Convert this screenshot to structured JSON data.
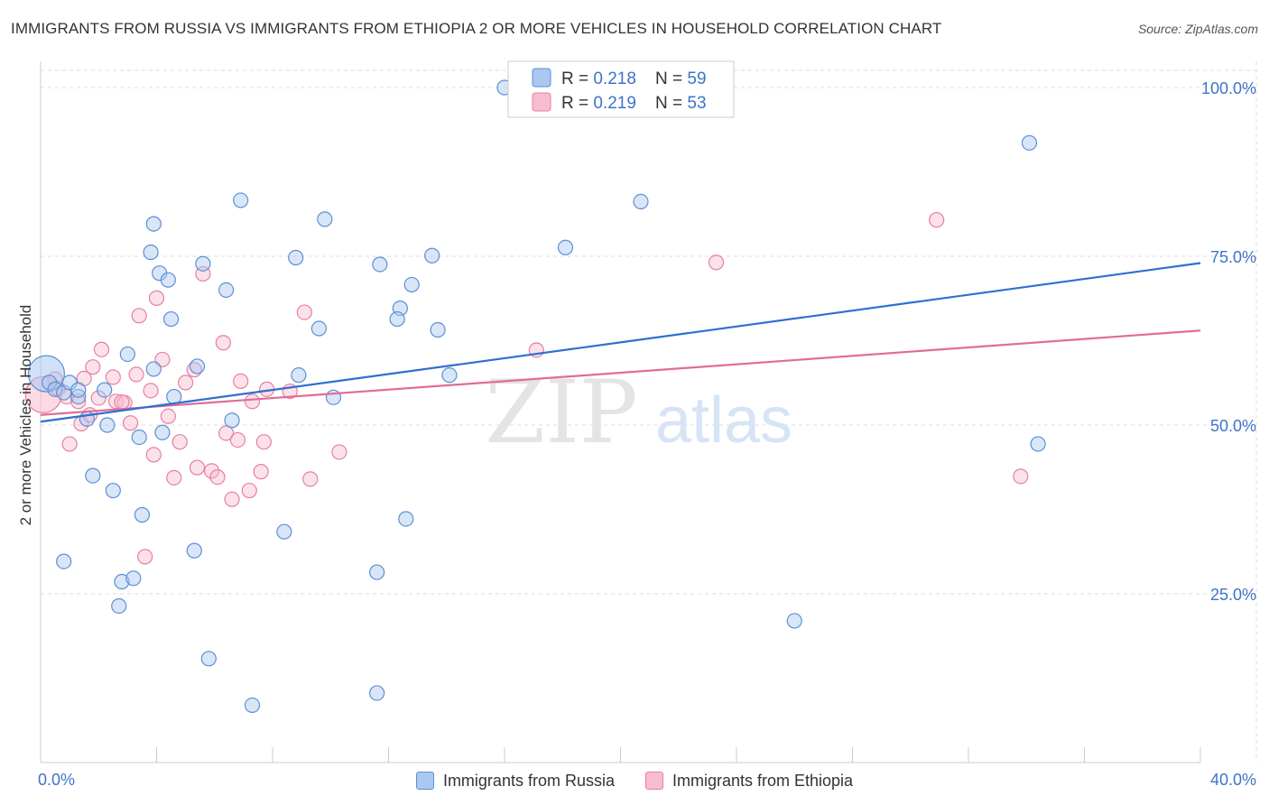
{
  "title": "IMMIGRANTS FROM RUSSIA VS IMMIGRANTS FROM ETHIOPIA 2 OR MORE VEHICLES IN HOUSEHOLD CORRELATION CHART",
  "source": "Source: ZipAtlas.com",
  "watermark": {
    "zip": "ZIP",
    "atlas": "atlas"
  },
  "stats": [
    {
      "r_label": "R = ",
      "r_value": "0.218",
      "n_label": "N = ",
      "n_value": "59"
    },
    {
      "r_label": "R = ",
      "r_value": "0.219",
      "n_label": "N = ",
      "n_value": "53"
    }
  ],
  "colors": {
    "russia_fill": "#aac8f0",
    "russia_stroke": "#5b8fd6",
    "russia_line": "#2e6fd1",
    "ethiopia_fill": "#f7bcd0",
    "ethiopia_stroke": "#e87fa3",
    "ethiopia_line": "#e06c98",
    "tick_text": "#3f73c8",
    "grid": "#dddddd"
  },
  "chart_data": {
    "type": "scatter",
    "title": "IMMIGRANTS FROM RUSSIA VS IMMIGRANTS FROM ETHIOPIA 2 OR MORE VEHICLES IN HOUSEHOLD CORRELATION CHART",
    "xlabel": "",
    "ylabel": "2 or more Vehicles in Household",
    "xlim": [
      0,
      40
    ],
    "ylim": [
      0,
      102
    ],
    "x_tick_labels": [
      "0.0%",
      "40.0%"
    ],
    "y_ticks": [
      25,
      50,
      75,
      100
    ],
    "y_tick_labels": [
      "25.0%",
      "50.0%",
      "75.0%",
      "100.0%"
    ],
    "legend": [
      "Immigrants from Russia",
      "Immigrants from Ethiopia"
    ],
    "series": [
      {
        "name": "Immigrants from Russia",
        "r": 0.218,
        "n": 59,
        "trend": {
          "x0": 0,
          "y0": 50.5,
          "x1": 40,
          "y1": 74
        },
        "points": [
          [
            0.2,
            57.6,
            "big"
          ],
          [
            0.3,
            56.3
          ],
          [
            0.5,
            55.3
          ],
          [
            0.8,
            54.8
          ],
          [
            1.0,
            56.3
          ],
          [
            1.3,
            54.2
          ],
          [
            1.6,
            50.9
          ],
          [
            1.3,
            55.2
          ],
          [
            2.2,
            55.2
          ],
          [
            2.3,
            50.0
          ],
          [
            1.8,
            42.5
          ],
          [
            2.5,
            40.3
          ],
          [
            3.0,
            60.5
          ],
          [
            3.4,
            48.2
          ],
          [
            3.5,
            36.7
          ],
          [
            0.8,
            29.8
          ],
          [
            2.8,
            26.8
          ],
          [
            3.2,
            27.3
          ],
          [
            2.7,
            23.2
          ],
          [
            3.9,
            58.3
          ],
          [
            4.5,
            65.7
          ],
          [
            4.2,
            48.9
          ],
          [
            4.6,
            54.2
          ],
          [
            5.4,
            58.7
          ],
          [
            4.1,
            72.5
          ],
          [
            4.4,
            71.5
          ],
          [
            3.8,
            75.6
          ],
          [
            3.9,
            79.8
          ],
          [
            5.6,
            73.9
          ],
          [
            6.4,
            70.0
          ],
          [
            5.3,
            31.4
          ],
          [
            5.8,
            15.4
          ],
          [
            6.6,
            50.7
          ],
          [
            6.9,
            83.3
          ],
          [
            7.3,
            8.5
          ],
          [
            8.8,
            74.8
          ],
          [
            8.9,
            57.4
          ],
          [
            8.4,
            34.2
          ],
          [
            9.6,
            64.3
          ],
          [
            10.1,
            54.1
          ],
          [
            9.8,
            80.5
          ],
          [
            11.7,
            73.8
          ],
          [
            12.4,
            67.3
          ],
          [
            12.3,
            65.7
          ],
          [
            12.8,
            70.8
          ],
          [
            13.5,
            75.1
          ],
          [
            13.7,
            64.1
          ],
          [
            12.6,
            36.1
          ],
          [
            11.6,
            28.2
          ],
          [
            11.6,
            10.3
          ],
          [
            14.1,
            57.4
          ],
          [
            16.0,
            100.0
          ],
          [
            18.1,
            76.3
          ],
          [
            20.7,
            83.1
          ],
          [
            26.0,
            21.0
          ],
          [
            34.1,
            91.8
          ],
          [
            34.4,
            47.2
          ]
        ]
      },
      {
        "name": "Immigrants from Ethiopia",
        "r": 0.219,
        "n": 53,
        "trend": {
          "x0": 0,
          "y0": 51.5,
          "x1": 40,
          "y1": 64
        },
        "points": [
          [
            0.1,
            54.5,
            "big"
          ],
          [
            0.5,
            56.8
          ],
          [
            0.6,
            55.4
          ],
          [
            0.9,
            54.2
          ],
          [
            1.0,
            47.2
          ],
          [
            1.3,
            53.5
          ],
          [
            1.4,
            50.2
          ],
          [
            1.5,
            56.9
          ],
          [
            1.7,
            51.5
          ],
          [
            1.8,
            58.6
          ],
          [
            2.0,
            54.0
          ],
          [
            2.1,
            61.2
          ],
          [
            2.5,
            57.1
          ],
          [
            2.6,
            53.5
          ],
          [
            2.9,
            53.3
          ],
          [
            2.8,
            53.4
          ],
          [
            3.1,
            50.3
          ],
          [
            3.3,
            57.5
          ],
          [
            3.4,
            66.2
          ],
          [
            3.6,
            30.5
          ],
          [
            3.8,
            55.1
          ],
          [
            3.9,
            45.6
          ],
          [
            4.0,
            68.8
          ],
          [
            4.2,
            59.7
          ],
          [
            4.4,
            51.3
          ],
          [
            4.6,
            42.2
          ],
          [
            4.8,
            47.5
          ],
          [
            5.0,
            56.3
          ],
          [
            5.3,
            58.2
          ],
          [
            5.4,
            43.7
          ],
          [
            5.6,
            72.4
          ],
          [
            5.9,
            43.2
          ],
          [
            6.1,
            42.3
          ],
          [
            6.3,
            62.2
          ],
          [
            6.4,
            48.8
          ],
          [
            6.6,
            39.0
          ],
          [
            6.8,
            47.8
          ],
          [
            6.9,
            56.5
          ],
          [
            7.2,
            40.3
          ],
          [
            7.3,
            53.5
          ],
          [
            7.6,
            43.1
          ],
          [
            7.8,
            55.3
          ],
          [
            7.7,
            47.5
          ],
          [
            8.6,
            55.0
          ],
          [
            9.1,
            66.7
          ],
          [
            9.3,
            42.0
          ],
          [
            10.3,
            46.0
          ],
          [
            17.1,
            61.1
          ],
          [
            23.3,
            74.1
          ],
          [
            30.9,
            80.4
          ],
          [
            33.8,
            42.4
          ]
        ]
      }
    ]
  }
}
